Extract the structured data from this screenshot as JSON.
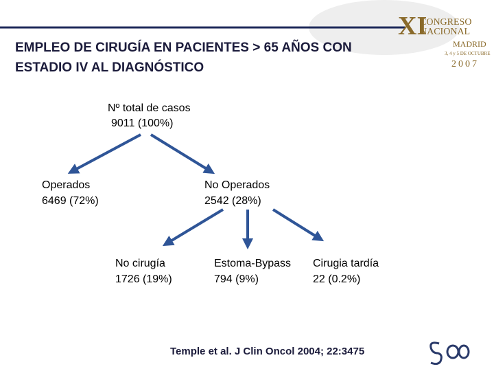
{
  "header": {
    "title_lines": [
      "EMPLEO DE CIRUGÍA EN PACIENTES > 65 AÑOS CON",
      "ESTADIO IV AL DIAGNÓSTICO"
    ]
  },
  "logo": {
    "numeral": "XI",
    "lines": [
      "CONGRESO",
      "NACIONAL",
      "MADRID",
      "3, 4 y 5 DE OCTUBRE",
      "2007"
    ]
  },
  "nodes": [
    {
      "lines": [
        "Nº total de casos",
        "9011 (100%)"
      ]
    },
    {
      "lines": [
        "Operados",
        "6469 (72%)"
      ]
    },
    {
      "lines": [
        "No Operados",
        "2542 (28%)"
      ]
    },
    {
      "lines": [
        "No cirugía",
        "1726 (19%)"
      ]
    },
    {
      "lines": [
        "Estoma-Bypass",
        "794 (9%)"
      ]
    },
    {
      "lines": [
        "Cirugia tardía",
        "22 (0.2%)"
      ]
    }
  ],
  "citation": "Temple et al. J Clin Oncol 2004; 22:3475"
}
